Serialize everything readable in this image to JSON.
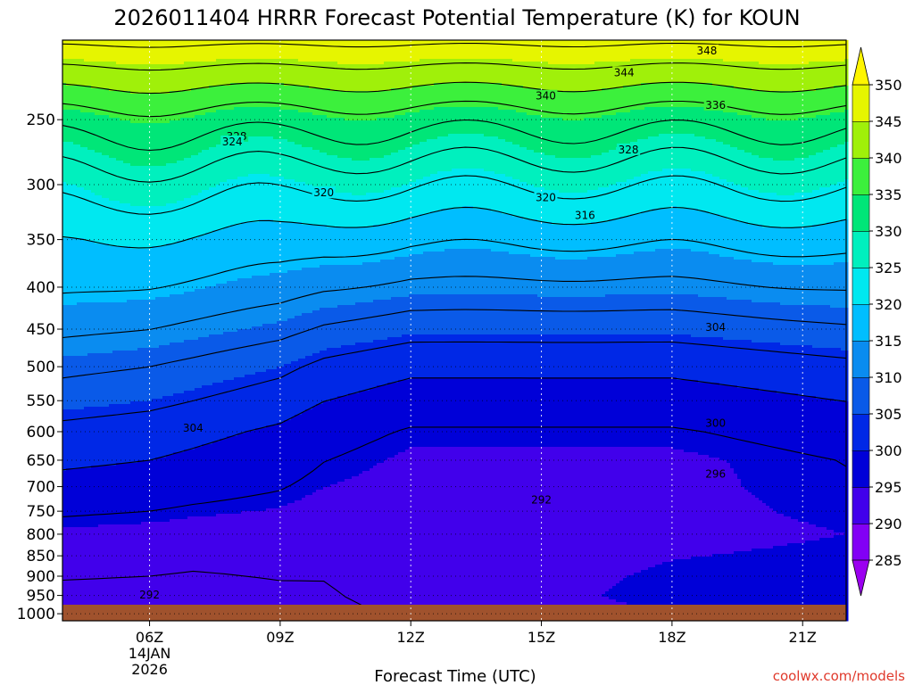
{
  "chart_data": {
    "type": "heatmap",
    "title": "2026011404 HRRR Forecast Potential Temperature (K) for KOUN",
    "xlabel": "Forecast Time (UTC)",
    "ylabel": "",
    "x_ticks": [
      {
        "hour": 6,
        "label": "06Z",
        "sub1": "14JAN",
        "sub2": "2026"
      },
      {
        "hour": 9,
        "label": "09Z",
        "sub1": "",
        "sub2": ""
      },
      {
        "hour": 12,
        "label": "12Z",
        "sub1": "",
        "sub2": ""
      },
      {
        "hour": 15,
        "label": "15Z",
        "sub1": "",
        "sub2": ""
      },
      {
        "hour": 18,
        "label": "18Z",
        "sub1": "",
        "sub2": ""
      },
      {
        "hour": 21,
        "label": "21Z",
        "sub1": "",
        "sub2": ""
      }
    ],
    "xlim": [
      4,
      22
    ],
    "y_ticks": [
      250,
      300,
      350,
      400,
      450,
      500,
      550,
      600,
      650,
      700,
      750,
      800,
      850,
      900,
      950,
      1000
    ],
    "ylim": [
      1020,
      200
    ],
    "y_scale": "log",
    "grid": true,
    "colorbar": {
      "levels": [
        285,
        290,
        295,
        300,
        305,
        310,
        315,
        320,
        325,
        330,
        335,
        340,
        345,
        350
      ],
      "labels": [
        "285",
        "290",
        "295",
        "300",
        "305",
        "310",
        "315",
        "320",
        "325",
        "330",
        "335",
        "340",
        "345",
        "350"
      ],
      "colors": [
        "#9b00f0",
        "#8200f5",
        "#4100eb",
        "#0000d8",
        "#0028e6",
        "#0a5ae8",
        "#0a8cf0",
        "#00beff",
        "#00e8f0",
        "#00f0be",
        "#00e678",
        "#3cf03c",
        "#a0f00a",
        "#e6f500",
        "#fff500"
      ],
      "extend": "both"
    },
    "contour_levels": [
      288,
      292,
      296,
      300,
      304,
      308,
      312,
      316,
      320,
      324,
      328,
      332,
      336,
      340,
      344,
      348
    ],
    "x": [
      4,
      5,
      6,
      7,
      8,
      9,
      10,
      11,
      12,
      13,
      14,
      15,
      16,
      17,
      18,
      19,
      20,
      21,
      22
    ],
    "theta_profile": [
      [
        1000,
        290
      ],
      [
        900,
        292
      ],
      [
        850,
        293
      ],
      [
        800,
        294
      ],
      [
        750,
        296
      ],
      [
        700,
        298
      ],
      [
        650,
        300
      ],
      [
        600,
        302
      ],
      [
        550,
        305
      ],
      [
        500,
        308
      ],
      [
        450,
        312
      ],
      [
        400,
        316
      ],
      [
        350,
        320
      ],
      [
        300,
        326
      ],
      [
        250,
        334
      ],
      [
        200,
        349
      ]
    ],
    "time_shift": [
      1.0,
      0.5,
      0,
      -1,
      -2,
      -3,
      -5,
      -6,
      -7,
      -7,
      -7,
      -7,
      -7,
      -7,
      -7,
      -6.5,
      -6,
      -5.5,
      -5
    ],
    "low_level_warming": [
      0,
      0,
      0,
      0,
      0.5,
      1,
      1.5,
      2.5,
      3,
      3.5,
      4,
      4.5,
      5,
      5.5,
      6,
      6,
      6,
      6,
      6
    ],
    "contour_labels": [
      {
        "text": "348",
        "hour": 18.8,
        "p": 206
      },
      {
        "text": "344",
        "hour": 16.9,
        "p": 219
      },
      {
        "text": "340",
        "hour": 15.1,
        "p": 234
      },
      {
        "text": "336",
        "hour": 19.0,
        "p": 240
      },
      {
        "text": "328",
        "hour": 8.0,
        "p": 262
      },
      {
        "text": "324",
        "hour": 7.9,
        "p": 266
      },
      {
        "text": "328",
        "hour": 17.0,
        "p": 272
      },
      {
        "text": "320",
        "hour": 10.0,
        "p": 307
      },
      {
        "text": "320",
        "hour": 15.1,
        "p": 311
      },
      {
        "text": "316",
        "hour": 16.0,
        "p": 327
      },
      {
        "text": "304",
        "hour": 19.0,
        "p": 448
      },
      {
        "text": "300",
        "hour": 19.0,
        "p": 586
      },
      {
        "text": "304",
        "hour": 7.0,
        "p": 594
      },
      {
        "text": "296",
        "hour": 19.0,
        "p": 676
      },
      {
        "text": "292",
        "hour": 15.0,
        "p": 727
      },
      {
        "text": "292",
        "hour": 6.0,
        "p": 949
      }
    ]
  },
  "credit": "coolwx.com/models"
}
